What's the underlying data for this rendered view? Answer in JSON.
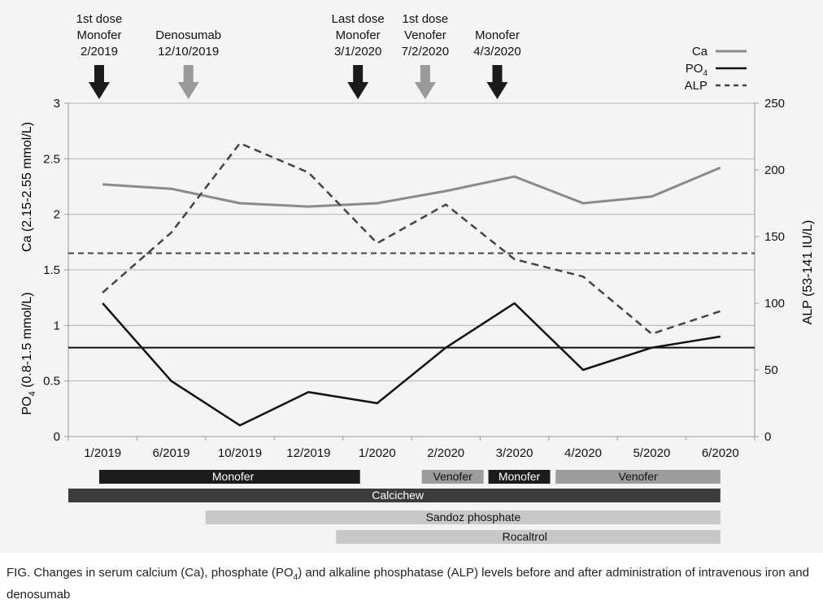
{
  "chart_data": {
    "type": "line",
    "categories": [
      "1/2019",
      "6/2019",
      "10/2019",
      "12/2019",
      "1/2020",
      "2/2020",
      "3/2020",
      "4/2020",
      "5/2020",
      "6/2020"
    ],
    "y_left": {
      "label": "Ca (2.15-2.55 mmol/L)",
      "ylim": [
        0,
        3
      ],
      "ticks": [
        "0",
        "0.5",
        "1",
        "1.5",
        "2",
        "2.5",
        "3"
      ]
    },
    "y_left_lower": {
      "label_main": "PO",
      "label_sub": "4",
      "label_rest": " (0.8-1.5 mmol/L)"
    },
    "y_right": {
      "label": "ALP (53-141 IU/L)",
      "ylim": [
        0,
        250
      ],
      "ticks": [
        "0",
        "50",
        "100",
        "150",
        "200",
        "250"
      ]
    },
    "series": [
      {
        "name": "Ca",
        "axis": "left",
        "color": "#8a8a8a",
        "style": "solid",
        "values": [
          2.27,
          2.23,
          2.1,
          2.07,
          2.1,
          2.21,
          2.34,
          2.1,
          2.16,
          2.42
        ]
      },
      {
        "name": "PO4",
        "name_main": "PO",
        "name_sub": "4",
        "axis": "left",
        "color": "#111111",
        "style": "solid",
        "values": [
          1.2,
          0.5,
          0.1,
          0.4,
          0.3,
          0.8,
          1.2,
          0.6,
          0.8,
          0.9
        ]
      },
      {
        "name": "ALP",
        "axis": "right",
        "color": "#444444",
        "style": "dashed",
        "values": [
          108,
          153,
          220,
          198,
          145,
          174,
          133,
          120,
          77,
          94
        ]
      }
    ],
    "reference_lines": [
      {
        "axis": "left",
        "value": 1.65,
        "style": "dashed",
        "color": "#444444"
      },
      {
        "axis": "left",
        "value": 0.8,
        "style": "solid",
        "color": "#111111"
      }
    ],
    "grid": true,
    "legend_position": "top-right",
    "events": [
      {
        "lines": [
          "1st dose",
          "Monofer",
          "2/2019"
        ],
        "at": 0.45,
        "color": "#1a1a1a"
      },
      {
        "lines": [
          "Denosumab",
          "12/10/2019"
        ],
        "at": 1.75,
        "color": "#9a9a9a"
      },
      {
        "lines": [
          "Last dose",
          "Monofer",
          "3/1/2020"
        ],
        "at": 4.22,
        "color": "#1a1a1a"
      },
      {
        "lines": [
          "1st dose",
          "Venofer",
          "7/2/2020"
        ],
        "at": 5.2,
        "color": "#9a9a9a"
      },
      {
        "lines": [
          "Monofer",
          "4/3/2020"
        ],
        "at": 6.25,
        "color": "#1a1a1a"
      }
    ],
    "treatments": [
      {
        "label": "Monofer",
        "row": 0,
        "start": 0.45,
        "end": 4.25,
        "fill": "#1c1c1c",
        "text_color": "#ffffff",
        "label_at": 2.4
      },
      {
        "label": "Venofer",
        "row": 0,
        "start": 5.15,
        "end": 6.05,
        "fill": "#9c9c9c",
        "text_color": "#111111",
        "label_at": 5.6
      },
      {
        "label": "Monofer",
        "row": 0,
        "start": 6.12,
        "end": 7.02,
        "fill": "#1c1c1c",
        "text_color": "#ffffff",
        "label_at": 6.57
      },
      {
        "label": "Venofer",
        "row": 0,
        "start": 7.1,
        "end": 9.5,
        "fill": "#9c9c9c",
        "text_color": "#111111",
        "label_at": 8.3
      },
      {
        "label": "Calcichew",
        "row": 1,
        "start": 0.0,
        "end": 9.5,
        "fill": "#3c3c3c",
        "text_color": "#ffffff",
        "label_at": 4.8
      },
      {
        "label": "Sandoz phosphate",
        "row": 2,
        "start": 2.0,
        "end": 9.5,
        "fill": "#c8c8c8",
        "text_color": "#111111",
        "label_at": 5.9
      },
      {
        "label": "Rocaltrol",
        "row": 3,
        "start": 3.9,
        "end": 9.5,
        "fill": "#c8c8c8",
        "text_color": "#111111",
        "label_at": 6.65
      }
    ]
  },
  "caption": {
    "prefix": "FIG.  Changes in serum calcium (Ca), phosphate (PO",
    "sub": "4",
    "suffix": ") and alkaline phosphatase (ALP) levels before and after administration of intravenous iron and denosumab"
  }
}
